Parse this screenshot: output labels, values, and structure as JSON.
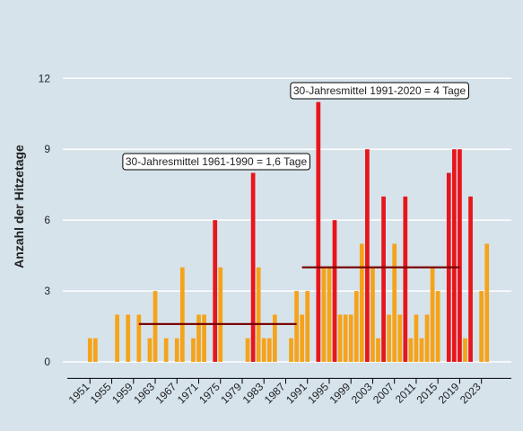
{
  "chart_data": {
    "type": "bar",
    "y_label": "Anzahl der Hitzetage",
    "x": [
      1951,
      1952,
      1956,
      1958,
      1960,
      1962,
      1963,
      1965,
      1967,
      1968,
      1970,
      1971,
      1972,
      1974,
      1975,
      1980,
      1981,
      1982,
      1983,
      1984,
      1985,
      1988,
      1989,
      1990,
      1991,
      1993,
      1994,
      1995,
      1996,
      1997,
      1998,
      1999,
      2000,
      2001,
      2002,
      2003,
      2004,
      2005,
      2006,
      2007,
      2008,
      2009,
      2010,
      2011,
      2012,
      2013,
      2014,
      2015,
      2017,
      2018,
      2019,
      2020,
      2021,
      2023,
      2024
    ],
    "values": [
      1,
      1,
      2,
      2,
      2,
      1,
      3,
      1,
      1,
      4,
      1,
      2,
      2,
      6,
      4,
      1,
      8,
      4,
      1,
      1,
      2,
      1,
      3,
      2,
      3,
      11,
      4,
      4,
      6,
      2,
      2,
      2,
      3,
      5,
      9,
      4,
      1,
      7,
      2,
      5,
      2,
      7,
      1,
      2,
      1,
      2,
      4,
      3,
      8,
      9,
      9,
      1,
      7,
      3,
      5
    ],
    "colors": [
      "#f5a31a",
      "#f5a31a",
      "#f5a31a",
      "#f5a31a",
      "#f5a31a",
      "#f5a31a",
      "#f5a31a",
      "#f5a31a",
      "#f5a31a",
      "#f5a31a",
      "#f5a31a",
      "#f5a31a",
      "#f5a31a",
      "#e8151b",
      "#f5a31a",
      "#f5a31a",
      "#e8151b",
      "#f5a31a",
      "#f5a31a",
      "#f5a31a",
      "#f5a31a",
      "#f5a31a",
      "#f5a31a",
      "#f5a31a",
      "#f5a31a",
      "#e8151b",
      "#f5a31a",
      "#f5a31a",
      "#e8151b",
      "#f5a31a",
      "#f5a31a",
      "#f5a31a",
      "#f5a31a",
      "#f5a31a",
      "#e8151b",
      "#f5a31a",
      "#f5a31a",
      "#e8151b",
      "#f5a31a",
      "#f5a31a",
      "#f5a31a",
      "#e8151b",
      "#f5a31a",
      "#f5a31a",
      "#f5a31a",
      "#f5a31a",
      "#f5a31a",
      "#f5a31a",
      "#e8151b",
      "#e8151b",
      "#e8151b",
      "#f5a31a",
      "#e8151b",
      "#f5a31a",
      "#f5a31a"
    ],
    "xlim": [
      1946,
      2028.5
    ],
    "xticks": [
      1951,
      1955,
      1959,
      1963,
      1967,
      1971,
      1975,
      1979,
      1983,
      1987,
      1991,
      1995,
      1999,
      2003,
      2007,
      2011,
      2015,
      2019,
      2023
    ],
    "ylim": [
      -0.7,
      13
    ],
    "yticks": [
      0,
      3,
      6,
      9,
      12
    ],
    "grid": true,
    "reference_lines": [
      {
        "label": "30-Jahresmittel 1961-1990 = 1,6 Tage",
        "value": 1.6,
        "x": [
          1961,
          1990
        ],
        "color": "#7a0000"
      },
      {
        "label": "30-Jahresmittel 1991-2020 = 4 Tage",
        "value": 4,
        "x": [
          1991,
          2020
        ],
        "color": "#7a0000"
      }
    ]
  }
}
